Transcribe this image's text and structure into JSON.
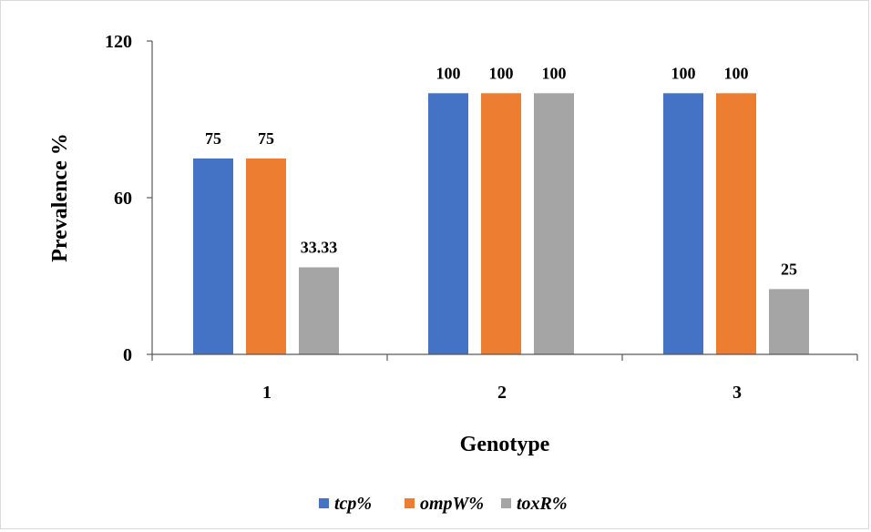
{
  "chart_data": {
    "type": "bar",
    "categories": [
      "1",
      "2",
      "3"
    ],
    "series": [
      {
        "name": "tcp%",
        "values": [
          75,
          100,
          100
        ],
        "labels": [
          "75",
          "100",
          "100"
        ],
        "color": "#4472C4"
      },
      {
        "name": "ompW%",
        "values": [
          75,
          100,
          100
        ],
        "labels": [
          "75",
          "100",
          "100"
        ],
        "color": "#ED7D31"
      },
      {
        "name": "toxR%",
        "values": [
          33.33,
          100,
          25
        ],
        "labels": [
          "33.33",
          "100",
          "25"
        ],
        "color": "#A5A5A5"
      }
    ],
    "title": "",
    "xlabel": "Genotype",
    "ylabel": "Prevalence %",
    "ylim": [
      0,
      120
    ],
    "yticks": [
      0,
      60,
      120
    ],
    "grid": false,
    "legend": "bottom"
  }
}
